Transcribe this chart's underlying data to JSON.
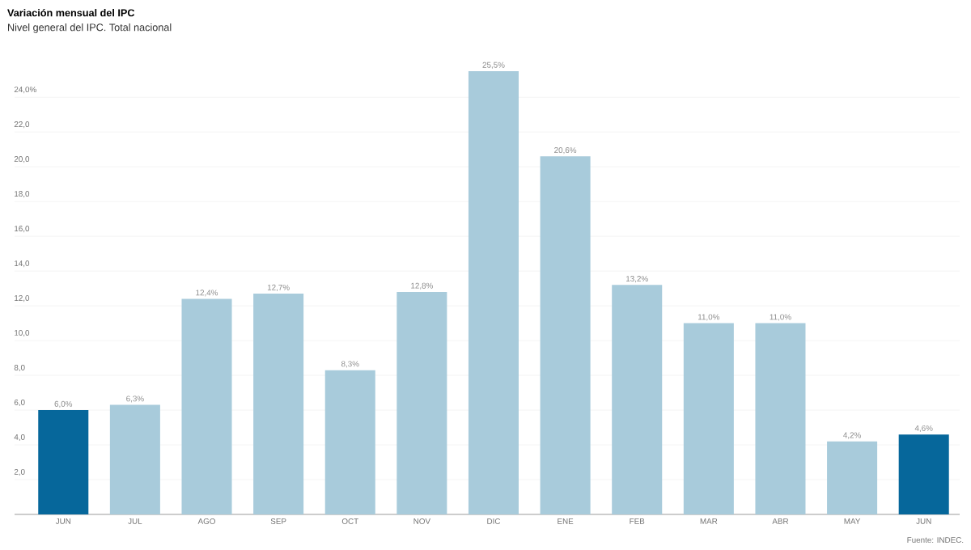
{
  "chart_data": {
    "type": "bar",
    "title": "Variación mensual del IPC",
    "subtitle": "Nivel general del IPC. Total nacional",
    "categories": [
      "JUN",
      "JUL",
      "AGO",
      "SEP",
      "OCT",
      "NOV",
      "DIC",
      "ENE",
      "FEB",
      "MAR",
      "ABR",
      "MAY",
      "JUN"
    ],
    "values": [
      6.0,
      6.3,
      12.4,
      12.7,
      8.3,
      12.8,
      25.5,
      20.6,
      13.2,
      11.0,
      11.0,
      4.2,
      4.6
    ],
    "colors": [
      "#06679b",
      "#a8cbdb",
      "#a8cbdb",
      "#a8cbdb",
      "#a8cbdb",
      "#a8cbdb",
      "#a8cbdb",
      "#a8cbdb",
      "#a8cbdb",
      "#a8cbdb",
      "#a8cbdb",
      "#a8cbdb",
      "#06679b"
    ],
    "value_labels": [
      "6,0%",
      "6,3%",
      "12,4%",
      "12,7%",
      "8,3%",
      "12,8%",
      "25,5%",
      "20,6%",
      "13,2%",
      "11,0%",
      "11,0%",
      "4,2%",
      "4,6%"
    ],
    "ylim": [
      0,
      25.5
    ],
    "yticks": [
      {
        "value": 2,
        "label": "2,0"
      },
      {
        "value": 4,
        "label": "4,0"
      },
      {
        "value": 6,
        "label": "6,0"
      },
      {
        "value": 8,
        "label": "8,0"
      },
      {
        "value": 10,
        "label": "10,0"
      },
      {
        "value": 12,
        "label": "12,0"
      },
      {
        "value": 14,
        "label": "14,0"
      },
      {
        "value": 16,
        "label": "16,0"
      },
      {
        "value": 18,
        "label": "18,0"
      },
      {
        "value": 20,
        "label": "20,0"
      },
      {
        "value": 22,
        "label": "22,0"
      },
      {
        "value": 24,
        "label": "24,0%"
      }
    ],
    "grid": "y",
    "annotations": [
      "Fuente: INDEC."
    ]
  }
}
